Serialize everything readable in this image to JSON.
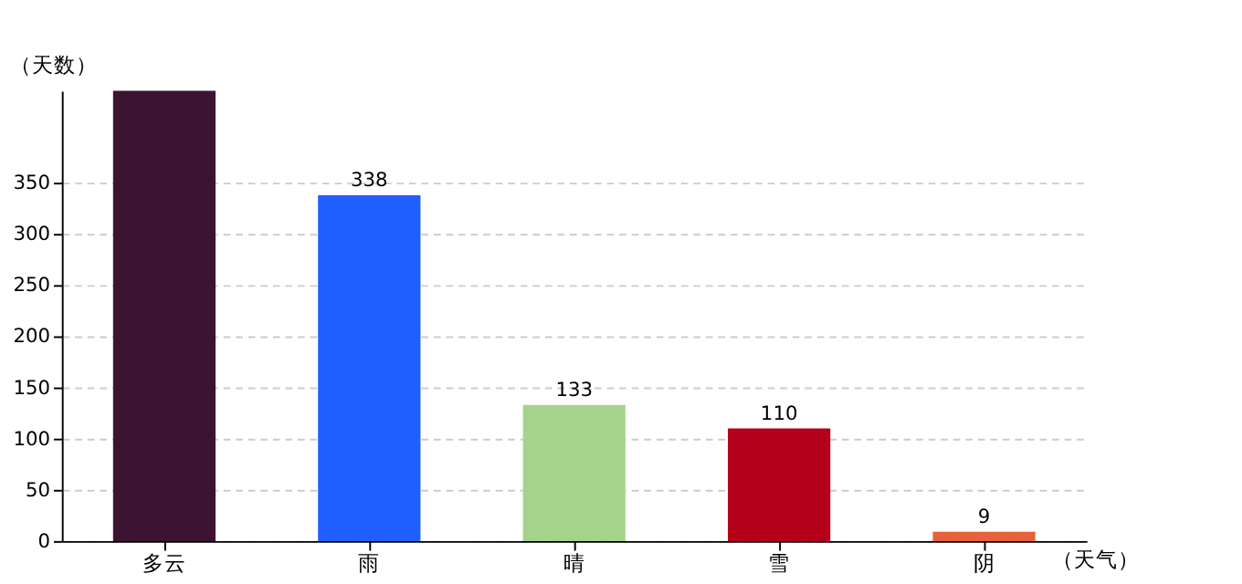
{
  "chart_data": {
    "type": "bar",
    "xlabel": "（天气）",
    "ylabel": "（天数）",
    "categories": [
      "多云",
      "雨",
      "晴",
      "雪",
      "阴"
    ],
    "values": [
      440,
      338,
      133,
      110,
      9
    ],
    "colors": [
      "#3c1432",
      "#1f5eff",
      "#a6d38c",
      "#b5001a",
      "#e8603c"
    ],
    "value_labels": [
      null,
      "338",
      "133",
      "110",
      "9"
    ],
    "ylim": [
      0,
      440
    ],
    "yticks": [
      0,
      50,
      100,
      150,
      200,
      250,
      300,
      350
    ],
    "grid": "y"
  }
}
